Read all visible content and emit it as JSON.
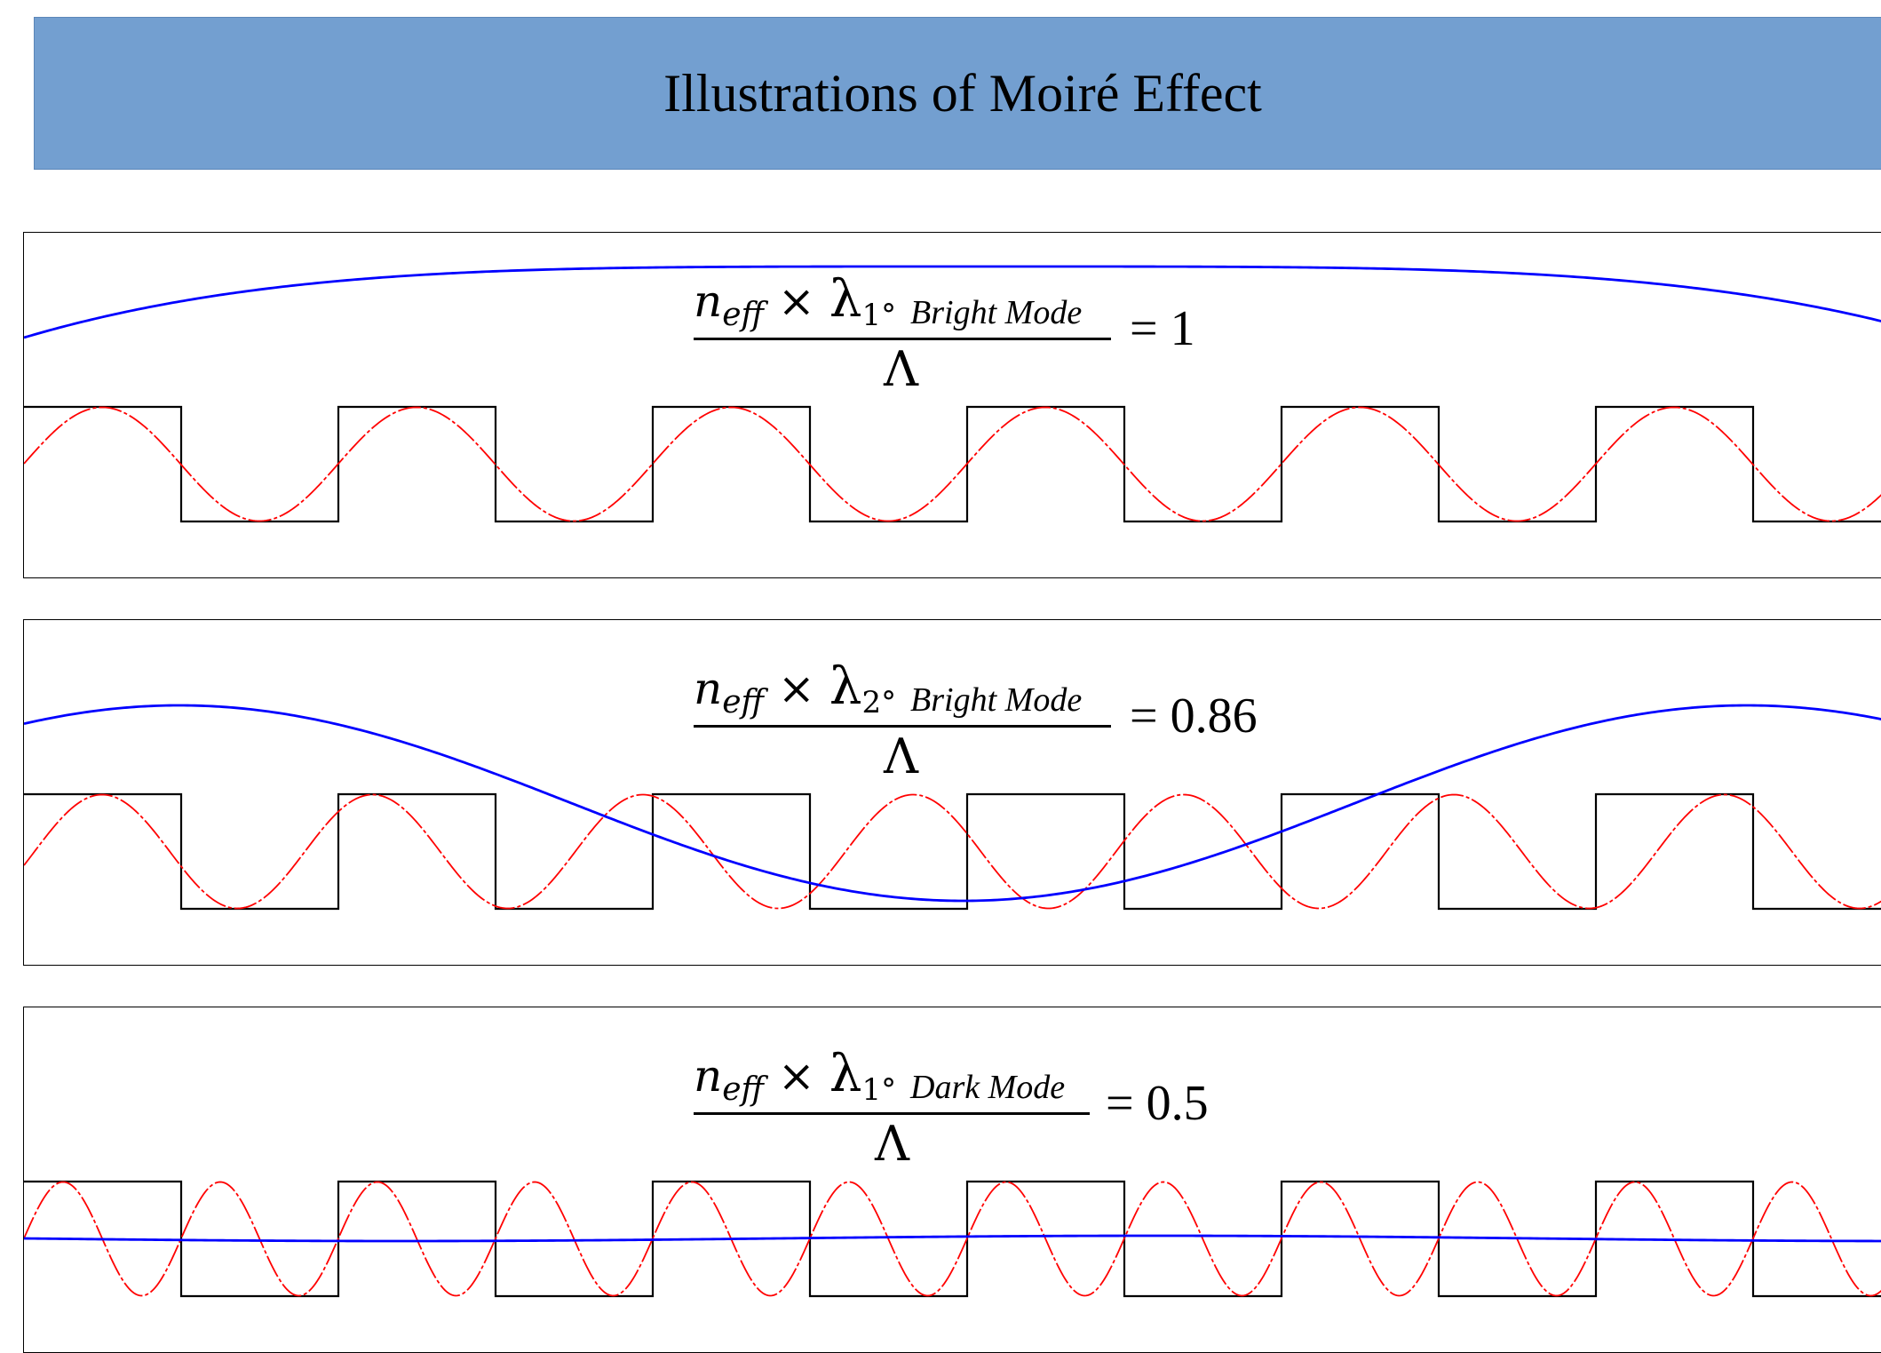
{
  "title": "Illustrations of Moiré Effect",
  "colors": {
    "banner": "#739fd0",
    "grating": "#000000",
    "mode": "#ff0000",
    "envelope": "#0000ff"
  },
  "panels": [
    {
      "formula": {
        "numerator_var": "n",
        "numerator_sub": "eff",
        "times": "×",
        "lambda": "λ",
        "order": "1°",
        "mode_label": "Bright Mode",
        "denominator": "Λ",
        "equals": "= 1"
      },
      "mode_cycles_per_grating_period": 1,
      "ratio": 1
    },
    {
      "formula": {
        "numerator_var": "n",
        "numerator_sub": "eff",
        "times": "×",
        "lambda": "λ",
        "order": "2°",
        "mode_label": "Bright Mode",
        "denominator": "Λ",
        "equals": "= 0.86"
      },
      "ratio": 0.86
    },
    {
      "formula": {
        "numerator_var": "n",
        "numerator_sub": "eff",
        "times": "×",
        "lambda": "λ",
        "order": "1°",
        "mode_label": "Dark Mode",
        "denominator": "Λ",
        "equals": "= 0.5"
      },
      "ratio": 0.5
    }
  ]
}
